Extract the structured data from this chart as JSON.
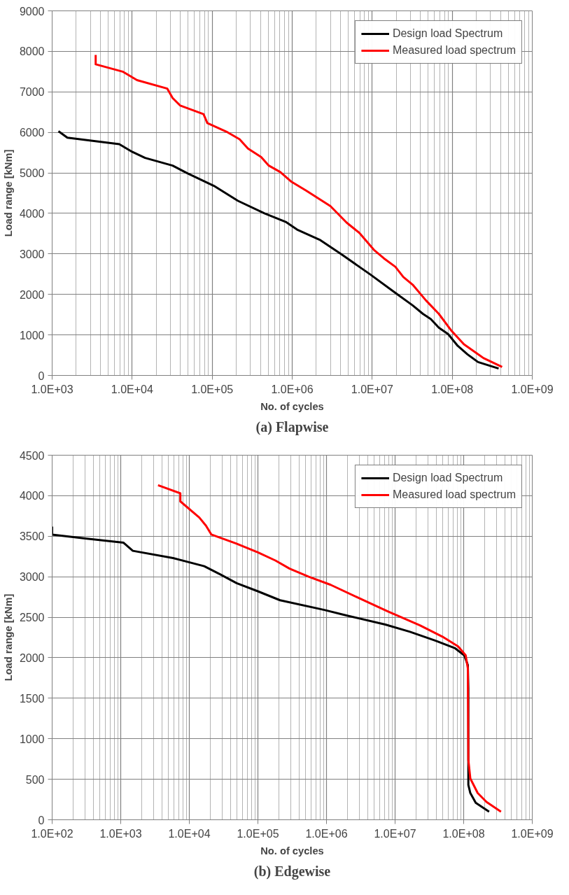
{
  "chart_data": [
    {
      "type": "line",
      "xlabel": "No. of cycles",
      "ylabel": "Load range [kNm]",
      "annotations": [
        "(a) Flapwise"
      ],
      "log": "x",
      "grid": true,
      "legend": "top right",
      "line_style": "solid",
      "marker": "none",
      "xlim": [
        1000,
        1000000000
      ],
      "xticks": [
        {
          "value": 1000,
          "label": "1.0E+03"
        },
        {
          "value": 10000,
          "label": "1.0E+04"
        },
        {
          "value": 100000,
          "label": "1.0E+05"
        },
        {
          "value": 1000000,
          "label": "1.0E+06"
        },
        {
          "value": 10000000,
          "label": "1.0E+07"
        },
        {
          "value": 100000000,
          "label": "1.0E+08"
        },
        {
          "value": 1000000000,
          "label": "1.0E+09"
        }
      ],
      "ylim": [
        0,
        9000
      ],
      "yticks": [
        0,
        1000,
        2000,
        3000,
        4000,
        5000,
        6000,
        7000,
        8000,
        9000
      ],
      "series": [
        {
          "name": "Design load Spectrum",
          "color": "#000000",
          "x": [
            1200.0,
            1550.0,
            6900.0,
            10000.0,
            14500.0,
            32000.0,
            49000.0,
            105000.0,
            210000.0,
            450000.0,
            830000.0,
            1150000.0,
            2200000.0,
            4200000.0,
            9500000.0,
            20000000.0,
            32000000.0,
            43000000.0,
            54000000.0,
            68000000.0,
            89000000.0,
            117000000.0,
            155000000.0,
            210000000.0,
            380000000.0
          ],
          "values": [
            6030,
            5870,
            5710,
            5520,
            5370,
            5180,
            4990,
            4680,
            4310,
            4000,
            3790,
            3600,
            3350,
            2980,
            2490,
            2020,
            1730,
            1520,
            1390,
            1180,
            1020,
            730,
            520,
            330,
            170
          ]
        },
        {
          "name": "Measured load spectrum",
          "color": "#ff0000",
          "x": [
            3500.0,
            3500.0,
            7600.0,
            11500.0,
            27500.0,
            32000.0,
            40000.0,
            78000.0,
            87000.0,
            150000.0,
            220000.0,
            280000.0,
            410000.0,
            510000.0,
            710000.0,
            980000.0,
            1500000.0,
            3000000.0,
            4800000.0,
            6900000.0,
            10500000.0,
            14000000.0,
            19500000.0,
            24500000.0,
            32000000.0,
            47000000.0,
            68000000.0,
            98000000.0,
            140000000.0,
            245000000.0,
            420000000.0
          ],
          "values": [
            7910,
            7680,
            7500,
            7290,
            7080,
            6850,
            6660,
            6450,
            6230,
            6020,
            5830,
            5600,
            5390,
            5180,
            5020,
            4780,
            4560,
            4180,
            3770,
            3520,
            3100,
            2890,
            2680,
            2430,
            2240,
            1850,
            1520,
            1100,
            770,
            430,
            210
          ]
        }
      ]
    },
    {
      "type": "line",
      "xlabel": "No. of cycles",
      "ylabel": "Load range [kNm]",
      "annotations": [
        "(b) Edgewise"
      ],
      "log": "x",
      "grid": true,
      "legend": "top right",
      "line_style": "solid",
      "marker": "none",
      "xlim": [
        100,
        1000000000
      ],
      "xticks": [
        {
          "value": 100,
          "label": "1.0E+02"
        },
        {
          "value": 1000,
          "label": "1.0E+03"
        },
        {
          "value": 10000,
          "label": "1.0E+04"
        },
        {
          "value": 100000,
          "label": "1.0E+05"
        },
        {
          "value": 1000000,
          "label": "1.0E+06"
        },
        {
          "value": 10000000,
          "label": "1.0E+07"
        },
        {
          "value": 100000000,
          "label": "1.0E+08"
        },
        {
          "value": 1000000000,
          "label": "1.0E+09"
        }
      ],
      "ylim": [
        0,
        4500
      ],
      "yticks": [
        0,
        500,
        1000,
        1500,
        2000,
        2500,
        3000,
        3500,
        4000,
        4500
      ],
      "series": [
        {
          "name": "Design load Spectrum",
          "color": "#000000",
          "x": [
            100,
            100,
            320.0,
            1100.0,
            1500.0,
            5800.0,
            16500.0,
            28000.0,
            49000.0,
            100000.0,
            210000.0,
            930000.0,
            2000000.0,
            7200000.0,
            16500000.0,
            39000000.0,
            74000000.0,
            102000000.0,
            115000000.0,
            117000000.0,
            117000000.0,
            125000000.0,
            150000000.0,
            235000000.0
          ],
          "values": [
            3620,
            3520,
            3470,
            3420,
            3320,
            3230,
            3130,
            3030,
            2920,
            2820,
            2710,
            2590,
            2520,
            2410,
            2320,
            2210,
            2120,
            2030,
            1910,
            1620,
            430,
            330,
            210,
            100
          ]
        },
        {
          "name": "Measured load spectrum",
          "color": "#ff0000",
          "x": [
            3500.0,
            7400.0,
            7400.0,
            14000.0,
            17500.0,
            21000.0,
            48000.0,
            100000.0,
            180000.0,
            290000.0,
            550000.0,
            1150000.0,
            2750000.0,
            7900000.0,
            23000000.0,
            49000000.0,
            83000000.0,
            107000000.0,
            115000000.0,
            117000000.0,
            125000000.0,
            160000000.0,
            215000000.0,
            350000000.0
          ],
          "values": [
            4130,
            4030,
            3930,
            3730,
            3630,
            3520,
            3410,
            3300,
            3200,
            3100,
            3000,
            2900,
            2750,
            2570,
            2400,
            2260,
            2140,
            2030,
            1870,
            740,
            510,
            330,
            220,
            100
          ]
        }
      ]
    }
  ]
}
